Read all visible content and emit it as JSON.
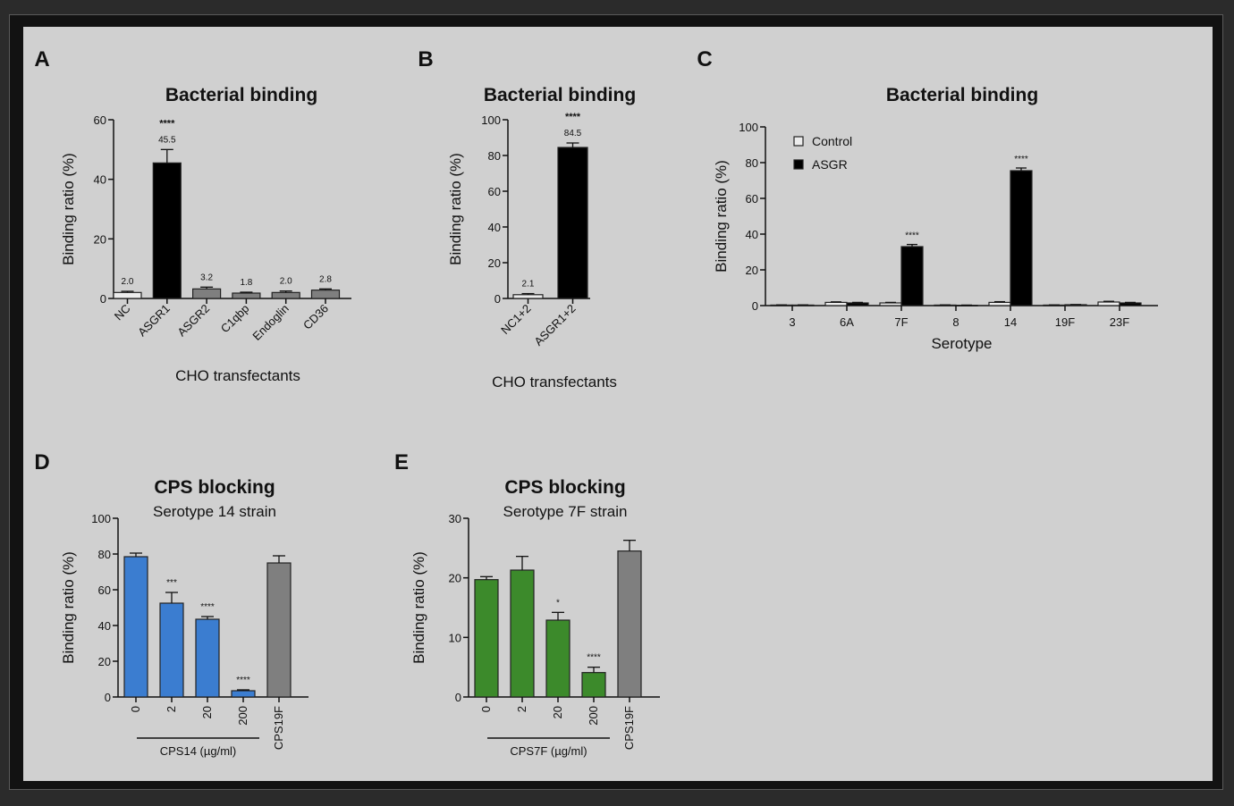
{
  "colors": {
    "white": "#ececec",
    "black": "#000000",
    "gray": "#7f7f7f",
    "lightgray": "#a5a5a5",
    "blue": "#3b7dd0",
    "green": "#3c8a2b"
  },
  "chart_data": [
    {
      "panel": "A",
      "type": "bar",
      "title": "Bacterial binding",
      "xlabel": "CHO transfectants",
      "ylabel": "Binding ratio (%)",
      "ylim": [
        0,
        60
      ],
      "yticks": [
        0,
        20,
        40,
        60
      ],
      "categories": [
        "NC",
        "ASGR1",
        "ASGR2",
        "C1qbp",
        "Endoglin",
        "CD36"
      ],
      "values": [
        2.0,
        45.5,
        3.2,
        1.8,
        2.0,
        2.8
      ],
      "errors": [
        0.4,
        4.5,
        0.6,
        0.3,
        0.5,
        0.4
      ],
      "data_labels": [
        "2.0",
        "45.5",
        "3.2",
        "1.8",
        "2.0",
        "2.8"
      ],
      "significance": [
        "",
        "****",
        "",
        "",
        "",
        ""
      ],
      "bar_colors": [
        "white",
        "black",
        "gray",
        "gray",
        "gray",
        "gray"
      ]
    },
    {
      "panel": "B",
      "type": "bar",
      "title": "Bacterial binding",
      "xlabel": "CHO transfectants",
      "ylabel": "Binding ratio (%)",
      "ylim": [
        0,
        100
      ],
      "yticks": [
        0,
        20,
        40,
        60,
        80,
        100
      ],
      "categories": [
        "NC1+2",
        "ASGR1+2"
      ],
      "values": [
        2.1,
        84.5
      ],
      "errors": [
        0.6,
        2.5
      ],
      "data_labels": [
        "2.1",
        "84.5"
      ],
      "significance": [
        "",
        "****"
      ],
      "bar_colors": [
        "white",
        "black"
      ]
    },
    {
      "panel": "C",
      "type": "bar",
      "title": "Bacterial binding",
      "xlabel": "Serotype",
      "ylabel": "Binding ratio (%)",
      "ylim": [
        0,
        100
      ],
      "yticks": [
        0,
        20,
        40,
        60,
        80,
        100
      ],
      "categories": [
        "3",
        "6A",
        "7F",
        "8",
        "14",
        "19F",
        "23F"
      ],
      "legend_position": "top-left",
      "series": [
        {
          "name": "Control",
          "color": "white",
          "values": [
            0.3,
            1.8,
            1.5,
            0.3,
            1.8,
            0.3,
            2.0
          ],
          "errors": [
            0.1,
            0.3,
            0.3,
            0.1,
            0.4,
            0.1,
            0.4
          ]
        },
        {
          "name": "ASGR",
          "color": "black",
          "values": [
            0.3,
            1.5,
            33,
            0.2,
            75.5,
            0.5,
            1.5
          ],
          "errors": [
            0.1,
            0.3,
            1.2,
            0.1,
            1.5,
            0.1,
            0.3
          ]
        }
      ],
      "significance": [
        "",
        "",
        "****",
        "",
        "****",
        "",
        ""
      ]
    },
    {
      "panel": "D",
      "type": "bar",
      "title": "CPS blocking",
      "subtitle": "Serotype 14 strain",
      "ylabel": "Binding ratio (%)",
      "ylim": [
        0,
        100
      ],
      "yticks": [
        0,
        20,
        40,
        60,
        80,
        100
      ],
      "categories": [
        "0",
        "2",
        "20",
        "200",
        "CPS19F"
      ],
      "values": [
        78.5,
        52.5,
        43.5,
        3.5,
        75
      ],
      "errors": [
        2.0,
        6.0,
        1.5,
        0.5,
        4.0
      ],
      "significance": [
        "",
        "***",
        "****",
        "****",
        ""
      ],
      "bar_colors": [
        "blue",
        "blue",
        "blue",
        "blue",
        "gray"
      ],
      "group_label": "CPS14 (µg/ml)"
    },
    {
      "panel": "E",
      "type": "bar",
      "title": "CPS blocking",
      "subtitle": "Serotype 7F strain",
      "ylabel": "Binding ratio (%)",
      "ylim": [
        0,
        30
      ],
      "yticks": [
        0,
        10,
        20,
        30
      ],
      "categories": [
        "0",
        "2",
        "20",
        "200",
        "CPS19F"
      ],
      "values": [
        19.7,
        21.3,
        12.9,
        4.1,
        24.5
      ],
      "errors": [
        0.5,
        2.3,
        1.3,
        0.9,
        1.8
      ],
      "significance": [
        "",
        "",
        "*",
        "****",
        ""
      ],
      "bar_colors": [
        "green",
        "green",
        "green",
        "green",
        "gray"
      ],
      "group_label": "CPS7F (µg/ml)"
    }
  ]
}
